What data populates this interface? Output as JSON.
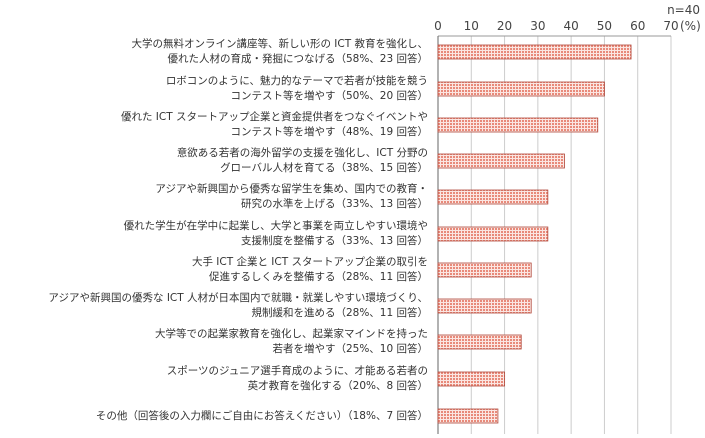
{
  "chart_data": {
    "type": "bar",
    "orientation": "horizontal",
    "n_label": "n=40",
    "unit_label": "(%)",
    "xlim": [
      0,
      70
    ],
    "xticks": [
      "0",
      "10",
      "20",
      "30",
      "40",
      "50",
      "60",
      "70"
    ],
    "grid": true,
    "colors": {
      "bar_fill": "#e88a7a",
      "bar_border": "#b0473a",
      "grid": "#cccccc"
    },
    "categories": [
      [
        "大学の無料オンライン講座等、新しい形の ICT 教育を強化し、",
        "優れた人材の育成・発掘につなげる（58%、23 回答）"
      ],
      [
        "ロボコンのように、魅力的なテーマで若者が技能を競う",
        "コンテスト等を増やす（50%、20 回答）"
      ],
      [
        "優れた ICT スタートアップ企業と資金提供者をつなぐイベントや",
        "コンテスト等を増やす（48%、19 回答）"
      ],
      [
        "意欲ある若者の海外留学の支援を強化し、ICT 分野の",
        "グローバル人材を育てる（38%、15 回答）"
      ],
      [
        "アジアや新興国から優秀な留学生を集め、国内での教育・",
        "研究の水準を上げる（33%、13 回答）"
      ],
      [
        "優れた学生が在学中に起業し、大学と事業を両立しやすい環境や",
        "支援制度を整備する（33%、13 回答）"
      ],
      [
        "大手 ICT 企業と ICT スタートアップ企業の取引を",
        "促進するしくみを整備する（28%、11 回答）"
      ],
      [
        "アジアや新興国の優秀な ICT 人材が日本国内で就職・就業しやすい環境づくり、",
        "規制緩和を進める（28%、11 回答）"
      ],
      [
        "大学等での起業家教育を強化し、起業家マインドを持った",
        "若者を増やす（25%、10 回答）"
      ],
      [
        "スポーツのジュニア選手育成のように、才能ある若者の",
        "英才教育を強化する（20%、8 回答）"
      ],
      [
        "その他（回答後の入力欄にご自由にお答えください）（18%、7 回答）"
      ]
    ],
    "values": [
      58,
      50,
      48,
      38,
      33,
      33,
      28,
      28,
      25,
      20,
      18
    ]
  }
}
